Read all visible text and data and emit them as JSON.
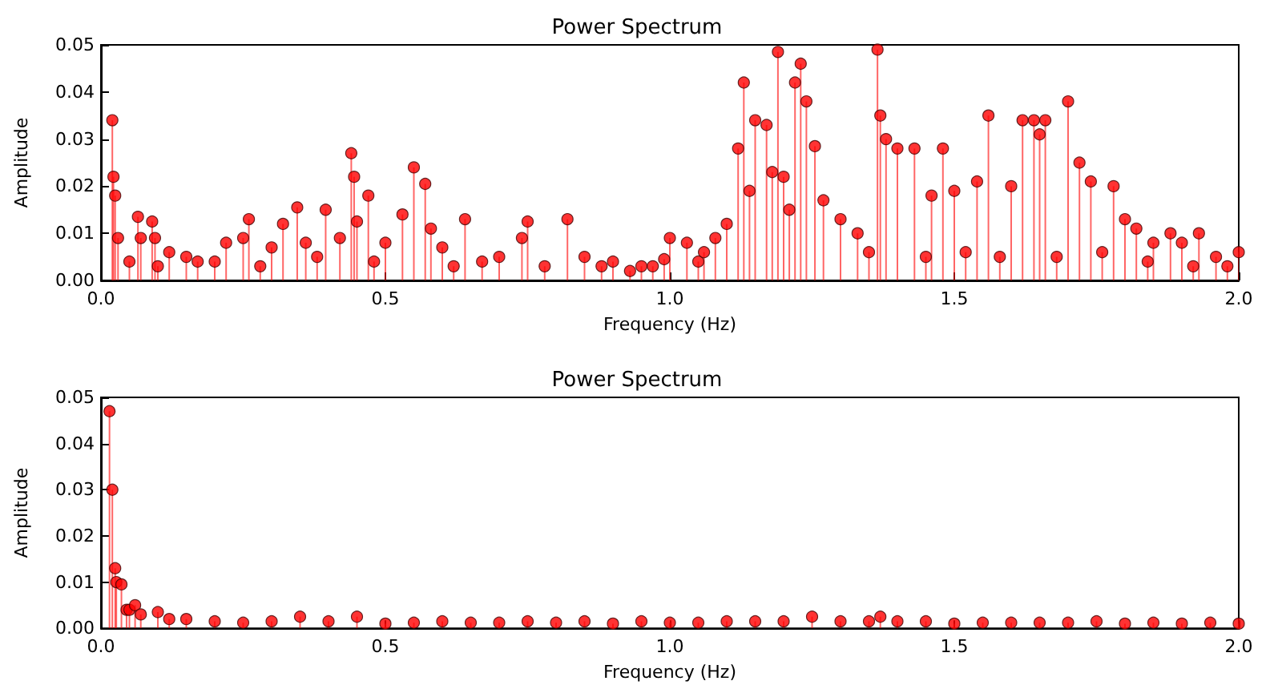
{
  "chart_data": [
    {
      "type": "lollipop",
      "title": "Power Spectrum",
      "xlabel": "Frequency (Hz)",
      "ylabel": "Amplitude",
      "xlim": [
        0,
        2
      ],
      "ylim": [
        0,
        0.05
      ],
      "xticks": [
        {
          "value": 0,
          "label": "0.0"
        },
        {
          "value": 0.5,
          "label": "0.5"
        },
        {
          "value": 1,
          "label": "1.0"
        },
        {
          "value": 1.5,
          "label": "1.5"
        },
        {
          "value": 2,
          "label": "2.0"
        }
      ],
      "yticks": [
        {
          "value": 0,
          "label": "0.00"
        },
        {
          "value": 0.01,
          "label": "0.01"
        },
        {
          "value": 0.02,
          "label": "0.02"
        },
        {
          "value": 0.03,
          "label": "0.03"
        },
        {
          "value": 0.04,
          "label": "0.04"
        },
        {
          "value": 0.05,
          "label": "0.05"
        }
      ],
      "grid": false,
      "marker": "circle",
      "series": [
        {
          "color": "#ff0000",
          "x": [
            0.02,
            0.022,
            0.025,
            0.03,
            0.05,
            0.065,
            0.07,
            0.09,
            0.095,
            0.1,
            0.12,
            0.15,
            0.17,
            0.2,
            0.22,
            0.25,
            0.26,
            0.28,
            0.3,
            0.32,
            0.345,
            0.36,
            0.38,
            0.395,
            0.42,
            0.44,
            0.445,
            0.45,
            0.47,
            0.48,
            0.5,
            0.53,
            0.55,
            0.57,
            0.58,
            0.6,
            0.62,
            0.64,
            0.67,
            0.7,
            0.74,
            0.75,
            0.78,
            0.82,
            0.85,
            0.88,
            0.9,
            0.93,
            0.95,
            0.97,
            0.99,
            1.0,
            1.03,
            1.05,
            1.06,
            1.08,
            1.1,
            1.12,
            1.13,
            1.14,
            1.15,
            1.17,
            1.18,
            1.19,
            1.2,
            1.21,
            1.22,
            1.23,
            1.24,
            1.255,
            1.27,
            1.3,
            1.33,
            1.35,
            1.365,
            1.37,
            1.38,
            1.4,
            1.43,
            1.45,
            1.46,
            1.48,
            1.5,
            1.52,
            1.54,
            1.56,
            1.58,
            1.6,
            1.62,
            1.64,
            1.65,
            1.66,
            1.68,
            1.7,
            1.72,
            1.74,
            1.76,
            1.78,
            1.8,
            1.82,
            1.84,
            1.85,
            1.88,
            1.9,
            1.92,
            1.93,
            1.96,
            1.98,
            2.0
          ],
          "values": [
            0.034,
            0.022,
            0.018,
            0.009,
            0.004,
            0.0135,
            0.009,
            0.0125,
            0.009,
            0.003,
            0.006,
            0.005,
            0.004,
            0.004,
            0.008,
            0.009,
            0.013,
            0.003,
            0.007,
            0.012,
            0.0155,
            0.008,
            0.005,
            0.015,
            0.009,
            0.027,
            0.022,
            0.0125,
            0.018,
            0.004,
            0.008,
            0.014,
            0.024,
            0.0205,
            0.011,
            0.007,
            0.003,
            0.013,
            0.004,
            0.005,
            0.009,
            0.0125,
            0.003,
            0.013,
            0.005,
            0.003,
            0.004,
            0.002,
            0.003,
            0.003,
            0.0045,
            0.009,
            0.008,
            0.004,
            0.006,
            0.009,
            0.012,
            0.028,
            0.042,
            0.019,
            0.034,
            0.033,
            0.023,
            0.0485,
            0.022,
            0.015,
            0.042,
            0.046,
            0.038,
            0.0285,
            0.017,
            0.013,
            0.01,
            0.006,
            0.049,
            0.035,
            0.03,
            0.028,
            0.028,
            0.005,
            0.018,
            0.028,
            0.019,
            0.006,
            0.021,
            0.035,
            0.005,
            0.02,
            0.034,
            0.034,
            0.031,
            0.034,
            0.005,
            0.038,
            0.025,
            0.021,
            0.006,
            0.02,
            0.013,
            0.011,
            0.004,
            0.008,
            0.01,
            0.008,
            0.003,
            0.01,
            0.005,
            0.003,
            0.006
          ]
        }
      ]
    },
    {
      "type": "lollipop",
      "title": "Power Spectrum",
      "xlabel": "Frequency (Hz)",
      "ylabel": "Amplitude",
      "xlim": [
        0,
        2
      ],
      "ylim": [
        0,
        0.05
      ],
      "xticks": [
        {
          "value": 0,
          "label": "0.0"
        },
        {
          "value": 0.5,
          "label": "0.5"
        },
        {
          "value": 1,
          "label": "1.0"
        },
        {
          "value": 1.5,
          "label": "1.5"
        },
        {
          "value": 2,
          "label": "2.0"
        }
      ],
      "yticks": [
        {
          "value": 0,
          "label": "0.00"
        },
        {
          "value": 0.01,
          "label": "0.01"
        },
        {
          "value": 0.02,
          "label": "0.02"
        },
        {
          "value": 0.03,
          "label": "0.03"
        },
        {
          "value": 0.04,
          "label": "0.04"
        },
        {
          "value": 0.05,
          "label": "0.05"
        }
      ],
      "grid": false,
      "marker": "circle",
      "series": [
        {
          "color": "#ff0000",
          "x": [
            0.015,
            0.02,
            0.025,
            0.027,
            0.036,
            0.045,
            0.05,
            0.06,
            0.07,
            0.1,
            0.12,
            0.15,
            0.2,
            0.25,
            0.3,
            0.35,
            0.4,
            0.45,
            0.5,
            0.55,
            0.6,
            0.65,
            0.7,
            0.75,
            0.8,
            0.85,
            0.9,
            0.95,
            1.0,
            1.05,
            1.1,
            1.15,
            1.2,
            1.25,
            1.3,
            1.35,
            1.37,
            1.4,
            1.45,
            1.5,
            1.55,
            1.6,
            1.65,
            1.7,
            1.75,
            1.8,
            1.85,
            1.9,
            1.95,
            2.0
          ],
          "values": [
            0.047,
            0.03,
            0.013,
            0.01,
            0.0095,
            0.004,
            0.004,
            0.005,
            0.003,
            0.0035,
            0.002,
            0.002,
            0.0015,
            0.0012,
            0.0015,
            0.0025,
            0.0015,
            0.0025,
            0.001,
            0.0012,
            0.0015,
            0.0012,
            0.0012,
            0.0015,
            0.0012,
            0.0015,
            0.001,
            0.0015,
            0.0012,
            0.0012,
            0.0015,
            0.0015,
            0.0015,
            0.0025,
            0.0015,
            0.0015,
            0.0025,
            0.0015,
            0.0015,
            0.001,
            0.0012,
            0.0012,
            0.0012,
            0.0012,
            0.0015,
            0.001,
            0.0012,
            0.001,
            0.0012,
            0.001
          ]
        }
      ]
    }
  ]
}
